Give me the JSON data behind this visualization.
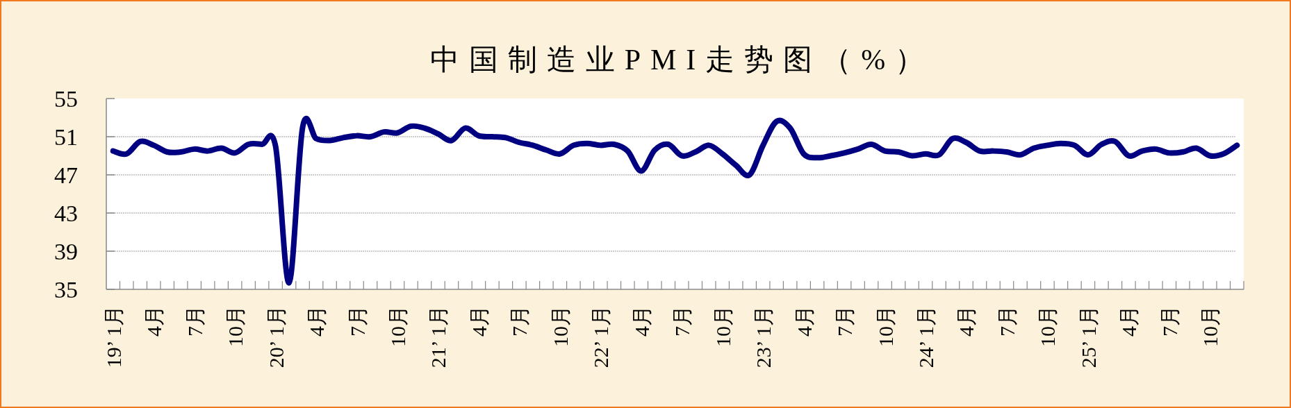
{
  "chart_data": {
    "type": "line",
    "title": "中国制造业PMI走势图（%）",
    "categories": [
      "19’ 1月",
      null,
      null,
      "4月",
      null,
      null,
      "7月",
      null,
      null,
      "10月",
      null,
      null,
      "20’ 1月",
      null,
      null,
      "4月",
      null,
      null,
      "7月",
      null,
      null,
      "10月",
      null,
      null,
      "21’ 1月",
      null,
      null,
      "4月",
      null,
      null,
      "7月",
      null,
      null,
      "10月",
      null,
      null,
      "22’ 1月",
      null,
      null,
      "4月",
      null,
      null,
      "7月",
      null,
      null,
      "10月",
      null,
      null,
      "23’ 1月",
      null,
      null,
      "4月",
      null,
      null,
      "7月",
      null,
      null,
      "10月",
      null,
      null,
      "24’ 1月",
      null,
      null,
      "4月",
      null,
      null,
      "7月",
      null,
      null,
      "10月",
      null,
      null,
      "25’ 1月",
      null,
      null,
      "4月",
      null,
      null,
      "7月",
      null,
      null,
      "10月",
      null,
      null
    ],
    "series": [
      {
        "color": "#000080",
        "values": [
          49.5,
          49.2,
          50.5,
          50.1,
          49.4,
          49.4,
          49.7,
          49.5,
          49.8,
          49.3,
          50.2,
          50.2,
          50.0,
          35.7,
          52.0,
          50.8,
          50.6,
          50.9,
          51.1,
          51.0,
          51.5,
          51.4,
          52.1,
          51.9,
          51.3,
          50.6,
          51.9,
          51.1,
          51.0,
          50.9,
          50.4,
          50.1,
          49.6,
          49.2,
          50.1,
          50.3,
          50.1,
          50.2,
          49.5,
          47.4,
          49.6,
          50.2,
          49.0,
          49.4,
          50.1,
          49.2,
          48.0,
          47.0,
          50.1,
          52.6,
          51.9,
          49.2,
          48.8,
          49.0,
          49.3,
          49.7,
          50.2,
          49.5,
          49.4,
          49.0,
          49.2,
          49.1,
          50.8,
          50.4,
          49.5,
          49.5,
          49.4,
          49.1,
          49.8,
          50.1,
          50.3,
          50.1,
          49.1,
          50.2,
          50.5,
          49.0,
          49.5,
          49.7,
          49.3,
          49.4,
          49.8,
          49.0,
          49.2,
          50.1
        ]
      }
    ],
    "ylim": [
      35,
      55
    ],
    "yticks": [
      35,
      39,
      43,
      47,
      51,
      55
    ],
    "grid": "y",
    "line_style": "solid"
  }
}
